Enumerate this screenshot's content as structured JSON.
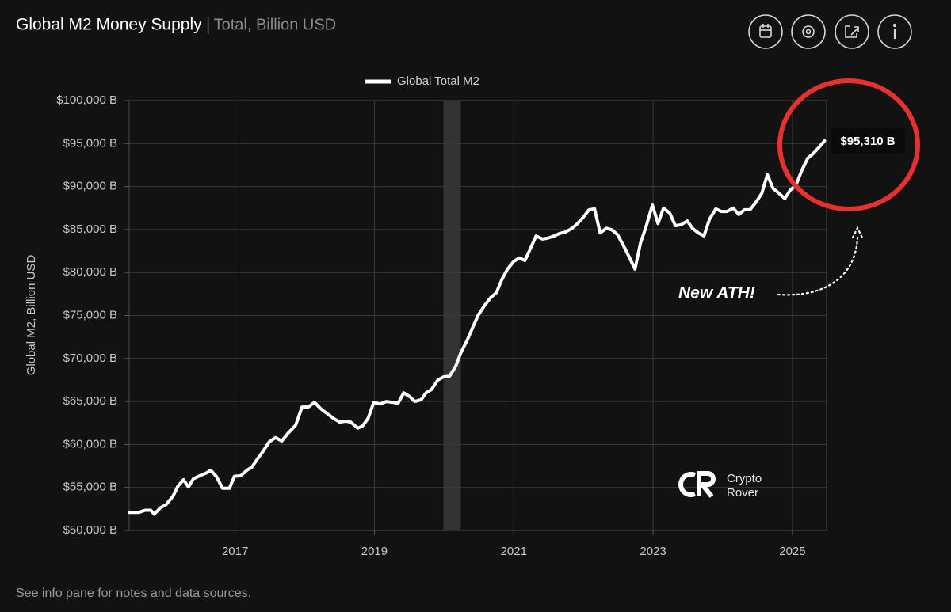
{
  "chart_data": {
    "type": "line",
    "title": "Global M2 Money Supply",
    "subtitle": "Total, Billion USD",
    "y_label": "Global M2, Billion USD",
    "footer": "See info pane for notes and data sources.",
    "annotation": "New ATH!",
    "watermark": [
      "Crypto",
      "Rover"
    ],
    "legend": "top",
    "grid": true,
    "xlim": [
      2015.48,
      2025.49
    ],
    "xticks": [
      2017,
      2019,
      2021,
      2023,
      2025
    ],
    "ylim": [
      50000,
      100000
    ],
    "yticks": [
      {
        "value": 50000,
        "label": "$50,000 B"
      },
      {
        "value": 55000,
        "label": "$55,000 B"
      },
      {
        "value": 60000,
        "label": "$60,000 B"
      },
      {
        "value": 65000,
        "label": "$65,000 B"
      },
      {
        "value": 70000,
        "label": "$70,000 B"
      },
      {
        "value": 75000,
        "label": "$75,000 B"
      },
      {
        "value": 80000,
        "label": "$80,000 B"
      },
      {
        "value": 85000,
        "label": "$85,000 B"
      },
      {
        "value": 90000,
        "label": "$90,000 B"
      },
      {
        "value": 95000,
        "label": "$95,000 B"
      },
      {
        "value": 100000,
        "label": "$100,000 B"
      }
    ],
    "shaded_band": [
      2019.99,
      2020.24
    ],
    "x": [
      2015.48,
      2015.62,
      2015.71,
      2015.79,
      2015.84,
      2015.93,
      2016.01,
      2016.11,
      2016.18,
      2016.26,
      2016.33,
      2016.4,
      2016.49,
      2016.58,
      2016.65,
      2016.73,
      2016.82,
      2016.92,
      2016.99,
      2017.08,
      2017.17,
      2017.24,
      2017.32,
      2017.41,
      2017.49,
      2017.58,
      2017.67,
      2017.76,
      2017.87,
      2017.96,
      2018.05,
      2018.14,
      2018.23,
      2018.32,
      2018.41,
      2018.5,
      2018.59,
      2018.66,
      2018.76,
      2018.83,
      2018.91,
      2018.99,
      2019.08,
      2019.17,
      2019.26,
      2019.34,
      2019.42,
      2019.51,
      2019.58,
      2019.67,
      2019.74,
      2019.82,
      2019.91,
      2019.99,
      2020.08,
      2020.17,
      2020.24,
      2020.33,
      2020.41,
      2020.49,
      2020.58,
      2020.67,
      2020.75,
      2020.83,
      2020.91,
      2021.0,
      2021.08,
      2021.16,
      2021.24,
      2021.32,
      2021.41,
      2021.49,
      2021.58,
      2021.66,
      2021.74,
      2021.83,
      2021.91,
      2022.0,
      2022.08,
      2022.16,
      2022.24,
      2022.33,
      2022.41,
      2022.49,
      2022.58,
      2022.66,
      2022.74,
      2022.82,
      2022.9,
      2022.99,
      2023.07,
      2023.15,
      2023.24,
      2023.32,
      2023.4,
      2023.49,
      2023.57,
      2023.65,
      2023.73,
      2023.81,
      2023.9,
      2023.98,
      2024.06,
      2024.15,
      2024.23,
      2024.31,
      2024.39,
      2024.47,
      2024.56,
      2024.64,
      2024.72,
      2024.81,
      2024.89,
      2024.97,
      2025.05,
      2025.13,
      2025.22,
      2025.3,
      2025.38,
      2025.46
    ],
    "series": [
      {
        "name": "Global Total M2",
        "color": "#ffffff",
        "values": [
          52100,
          52100,
          52350,
          52350,
          51900,
          52650,
          53000,
          54000,
          55150,
          55900,
          55050,
          56000,
          56350,
          56650,
          57000,
          56300,
          54900,
          54900,
          56300,
          56350,
          57000,
          57350,
          58300,
          59300,
          60300,
          60800,
          60400,
          61300,
          62250,
          64350,
          64350,
          64900,
          64150,
          63600,
          63050,
          62600,
          62700,
          62600,
          61900,
          62150,
          63050,
          64900,
          64700,
          65000,
          64900,
          64800,
          66000,
          65550,
          65000,
          65200,
          66000,
          66400,
          67500,
          67850,
          67950,
          69150,
          70650,
          72100,
          73600,
          75050,
          76150,
          77100,
          77650,
          79200,
          80400,
          81300,
          81700,
          81400,
          82800,
          84250,
          83900,
          84000,
          84250,
          84550,
          84700,
          85100,
          85650,
          86450,
          87300,
          87400,
          84600,
          85150,
          84950,
          84400,
          83050,
          81750,
          80400,
          83450,
          85350,
          87850,
          85700,
          87500,
          86900,
          85450,
          85550,
          86000,
          85100,
          84600,
          84250,
          86200,
          87400,
          87100,
          87100,
          87500,
          86750,
          87300,
          87300,
          88100,
          89200,
          91400,
          89800,
          89200,
          88600,
          89600,
          90150,
          91800,
          93300,
          93850,
          94550,
          95310
        ],
        "value_labels": [
          null,
          null,
          null,
          null,
          null,
          null,
          null,
          null,
          null,
          null,
          null,
          null,
          null,
          null,
          null,
          null,
          null,
          null,
          null,
          null,
          null,
          null,
          null,
          null,
          null,
          null,
          null,
          null,
          null,
          null,
          null,
          null,
          null,
          null,
          null,
          null,
          null,
          null,
          null,
          null,
          null,
          null,
          null,
          null,
          null,
          null,
          null,
          null,
          null,
          null,
          null,
          null,
          null,
          null,
          null,
          null,
          null,
          null,
          null,
          null,
          null,
          null,
          null,
          null,
          null,
          null,
          null,
          null,
          null,
          null,
          null,
          null,
          null,
          null,
          null,
          null,
          null,
          null,
          null,
          null,
          null,
          null,
          null,
          null,
          null,
          null,
          null,
          null,
          null,
          null,
          null,
          null,
          null,
          null,
          null,
          null,
          null,
          null,
          null,
          null,
          null,
          null,
          null,
          null,
          null,
          null,
          null,
          null,
          null,
          null,
          null,
          null,
          null,
          null,
          null,
          null,
          null,
          null,
          null,
          "$95,310 B"
        ]
      }
    ]
  }
}
